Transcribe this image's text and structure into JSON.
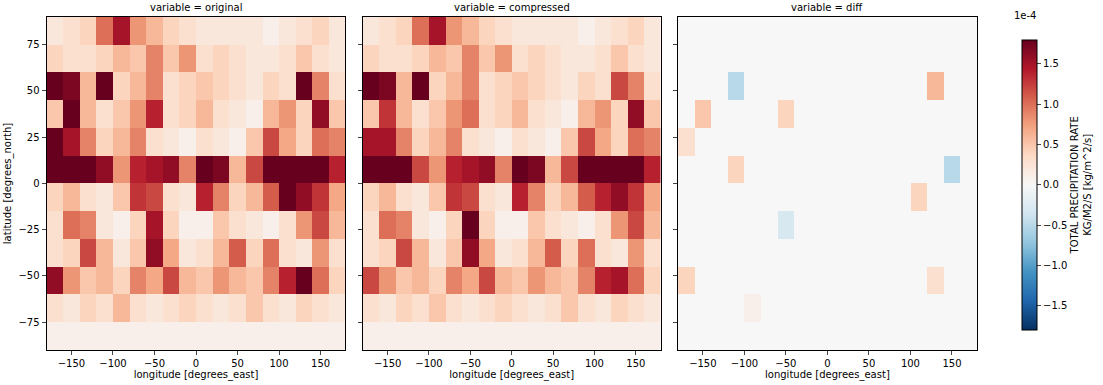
{
  "chart_data": {
    "type": "heatmap",
    "x": [
      -170,
      -150,
      -130,
      -110,
      -90,
      -70,
      -50,
      -30,
      -10,
      10,
      30,
      50,
      70,
      90,
      110,
      130,
      150,
      170
    ],
    "y": [
      -82.5,
      -67.5,
      -52.5,
      -37.5,
      -22.5,
      -7.5,
      7.5,
      22.5,
      37.5,
      52.5,
      67.5,
      82.5
    ],
    "xlabel": "longitude [degrees_east]",
    "ylabel": "latitude [degrees_north]",
    "xlim": [
      -180,
      180
    ],
    "xticks": [
      {
        "value": -150,
        "label": "−150"
      },
      {
        "value": -100,
        "label": "−100"
      },
      {
        "value": -50,
        "label": "−50"
      },
      0,
      50,
      100,
      150
    ],
    "ylim": [
      -90,
      90
    ],
    "yticks": [
      {
        "value": -75,
        "label": "−75"
      },
      {
        "value": -50,
        "label": "−50"
      },
      {
        "value": -25,
        "label": "−25"
      },
      0,
      25,
      50,
      75
    ],
    "grid": false,
    "colorbar": {
      "title": [
        "TOTAL PRECIPITATION RATE",
        "KG/M2/S [kg/m^2/s]"
      ],
      "scale_label": "1e-4",
      "range": [
        -1.8,
        1.8
      ],
      "ticks": [
        1.5,
        {
          "value": 1,
          "label": "1.0"
        },
        0.5,
        {
          "value": 0,
          "label": "0.0"
        },
        {
          "value": -0.5,
          "label": "−0.5"
        },
        {
          "value": -1,
          "label": "−1.0"
        },
        {
          "value": -1.5,
          "label": "−1.5"
        }
      ]
    },
    "panels": [
      {
        "title": "variable = original",
        "z": [
          [
            0.1,
            0.1,
            0.1,
            0.1,
            0.1,
            0.1,
            0.1,
            0.1,
            0.1,
            0.1,
            0.1,
            0.1,
            0.1,
            0.1,
            0.1,
            0.1,
            0.1,
            0.1
          ],
          [
            0.3,
            0.2,
            0.4,
            0.3,
            0.6,
            0.3,
            0.2,
            0.3,
            0.4,
            0.3,
            0.2,
            0.3,
            0.5,
            0.3,
            0.2,
            0.4,
            0.3,
            0.2
          ],
          [
            1.6,
            0.8,
            0.5,
            0.6,
            0.4,
            0.9,
            0.7,
            1.2,
            0.6,
            0.5,
            0.8,
            0.6,
            0.5,
            0.9,
            1.4,
            1.8,
            1.0,
            0.4
          ],
          [
            0.3,
            0.4,
            1.2,
            0.6,
            0.2,
            0.5,
            1.6,
            0.7,
            0.2,
            0.3,
            0.6,
            1.1,
            0.4,
            1.0,
            0.3,
            0.2,
            0.8,
            0.3
          ],
          [
            0.3,
            1.0,
            0.9,
            0.2,
            0.1,
            0.4,
            1.5,
            0.4,
            0.1,
            0.1,
            0.5,
            0.3,
            0.2,
            0.1,
            0.3,
            0.8,
            1.2,
            0.6
          ],
          [
            0.4,
            0.6,
            0.3,
            0.2,
            0.5,
            1.3,
            1.2,
            0.3,
            0.2,
            1.4,
            0.9,
            0.4,
            0.6,
            1.1,
            1.8,
            1.6,
            1.3,
            0.7
          ],
          [
            2.0,
            2.2,
            1.9,
            1.6,
            0.8,
            1.4,
            1.5,
            1.6,
            0.9,
            1.8,
            1.7,
            0.6,
            1.2,
            2.0,
            1.9,
            2.1,
            1.8,
            1.4
          ],
          [
            1.8,
            1.5,
            0.9,
            0.4,
            0.6,
            0.9,
            0.3,
            0.2,
            0.1,
            0.3,
            0.2,
            0.1,
            0.5,
            1.2,
            0.7,
            0.4,
            1.0,
            0.9
          ],
          [
            0.5,
            1.8,
            0.6,
            0.3,
            0.5,
            0.8,
            1.4,
            0.3,
            0.4,
            0.6,
            0.3,
            0.2,
            0.1,
            0.6,
            0.8,
            0.4,
            1.6,
            0.5
          ],
          [
            2.0,
            1.7,
            0.6,
            1.9,
            0.4,
            0.6,
            0.9,
            0.3,
            0.4,
            0.5,
            0.4,
            0.3,
            0.2,
            0.4,
            0.3,
            1.8,
            0.9,
            0.3
          ],
          [
            0.4,
            0.3,
            0.3,
            0.4,
            0.6,
            0.5,
            0.9,
            0.5,
            0.8,
            0.3,
            0.4,
            0.3,
            0.2,
            0.2,
            0.3,
            0.5,
            0.3,
            0.2
          ],
          [
            0.2,
            0.3,
            0.4,
            1.0,
            1.5,
            0.8,
            0.6,
            0.4,
            0.3,
            0.2,
            0.2,
            0.2,
            0.2,
            0.1,
            0.2,
            0.3,
            0.4,
            0.2
          ]
        ]
      },
      {
        "title": "variable = compressed",
        "z": [
          [
            0.1,
            0.1,
            0.1,
            0.1,
            0.1,
            0.1,
            0.1,
            0.1,
            0.1,
            0.1,
            0.1,
            0.1,
            0.1,
            0.1,
            0.1,
            0.1,
            0.1,
            0.1
          ],
          [
            0.3,
            0.2,
            0.4,
            0.3,
            0.5,
            0.3,
            0.2,
            0.3,
            0.4,
            0.3,
            0.2,
            0.3,
            0.5,
            0.3,
            0.2,
            0.4,
            0.3,
            0.2
          ],
          [
            1.2,
            0.8,
            0.5,
            0.6,
            0.4,
            0.9,
            0.7,
            1.2,
            0.6,
            0.5,
            0.8,
            0.6,
            0.5,
            0.9,
            1.4,
            1.5,
            1.0,
            0.4
          ],
          [
            0.3,
            0.4,
            1.2,
            0.6,
            0.2,
            0.5,
            1.6,
            0.7,
            0.2,
            0.3,
            0.6,
            1.1,
            0.4,
            1.0,
            0.3,
            0.2,
            0.8,
            0.3
          ],
          [
            0.3,
            1.0,
            0.9,
            0.2,
            0.1,
            0.4,
            1.8,
            0.4,
            0.1,
            0.1,
            0.5,
            0.3,
            0.2,
            0.1,
            0.3,
            0.8,
            1.2,
            0.6
          ],
          [
            0.4,
            0.6,
            0.3,
            0.2,
            0.5,
            1.3,
            1.2,
            0.3,
            0.2,
            1.4,
            0.9,
            0.4,
            0.6,
            1.1,
            1.4,
            1.6,
            1.3,
            0.7
          ],
          [
            2.0,
            2.2,
            1.9,
            1.2,
            0.8,
            1.4,
            1.5,
            1.6,
            0.9,
            1.8,
            1.7,
            0.6,
            1.2,
            2.0,
            1.9,
            2.1,
            2.3,
            1.4
          ],
          [
            1.5,
            1.5,
            0.9,
            0.4,
            0.6,
            0.9,
            0.3,
            0.2,
            0.1,
            0.3,
            0.2,
            0.1,
            0.5,
            1.2,
            0.7,
            0.4,
            1.0,
            0.9
          ],
          [
            0.5,
            1.3,
            0.6,
            0.3,
            0.5,
            0.8,
            1.0,
            0.3,
            0.4,
            0.6,
            0.3,
            0.2,
            0.1,
            0.6,
            0.8,
            0.4,
            1.6,
            0.5
          ],
          [
            2.0,
            1.7,
            0.6,
            2.4,
            0.4,
            0.6,
            0.9,
            0.3,
            0.4,
            0.5,
            0.4,
            0.3,
            0.2,
            0.4,
            0.3,
            1.2,
            0.9,
            0.3
          ],
          [
            0.4,
            0.3,
            0.3,
            0.4,
            0.6,
            0.5,
            0.9,
            0.5,
            0.8,
            0.3,
            0.4,
            0.3,
            0.2,
            0.2,
            0.3,
            0.5,
            0.3,
            0.2
          ],
          [
            0.2,
            0.3,
            0.4,
            1.0,
            1.5,
            0.8,
            0.6,
            0.4,
            0.3,
            0.2,
            0.2,
            0.2,
            0.2,
            0.1,
            0.2,
            0.3,
            0.4,
            0.2
          ]
        ]
      },
      {
        "title": "variable = diff",
        "z": [
          [
            0,
            0,
            0,
            0,
            0,
            0,
            0,
            0,
            0,
            0,
            0,
            0,
            0,
            0,
            0,
            0,
            0,
            0
          ],
          [
            0,
            0,
            0,
            0,
            0.1,
            0,
            0,
            0,
            0,
            0,
            0,
            0,
            0,
            0,
            0,
            0,
            0,
            0
          ],
          [
            0.4,
            0,
            0,
            0,
            0,
            0,
            0,
            0,
            0,
            0,
            0,
            0,
            0,
            0,
            0,
            0.3,
            0,
            0
          ],
          [
            0,
            0,
            0,
            0,
            0,
            0,
            0,
            0,
            0,
            0,
            0,
            0,
            0,
            0,
            0,
            0,
            0,
            0
          ],
          [
            0,
            0,
            0,
            0,
            0,
            0,
            -0.3,
            0,
            0,
            0,
            0,
            0,
            0,
            0,
            0,
            0,
            0,
            0
          ],
          [
            0,
            0,
            0,
            0,
            0,
            0,
            0,
            0,
            0,
            0,
            0,
            0,
            0,
            0,
            0.4,
            0,
            0,
            0
          ],
          [
            0,
            0,
            0,
            0.4,
            0,
            0,
            0,
            0,
            0,
            0,
            0,
            0,
            0,
            0,
            0,
            0,
            -0.5,
            0
          ],
          [
            0.3,
            0,
            0,
            0,
            0,
            0,
            0,
            0,
            0,
            0,
            0,
            0,
            0,
            0,
            0,
            0,
            0,
            0
          ],
          [
            0,
            0.5,
            0,
            0,
            0,
            0,
            0.4,
            0,
            0,
            0,
            0,
            0,
            0,
            0,
            0,
            0,
            0,
            0
          ],
          [
            0,
            0,
            0,
            -0.5,
            0,
            0,
            0,
            0,
            0,
            0,
            0,
            0,
            0,
            0,
            0,
            0.6,
            0,
            0
          ],
          [
            0,
            0,
            0,
            0,
            0,
            0,
            0,
            0,
            0,
            0,
            0,
            0,
            0,
            0,
            0,
            0,
            0,
            0
          ],
          [
            0,
            0,
            0,
            0,
            0,
            0,
            0,
            0,
            0,
            0,
            0,
            0,
            0,
            0,
            0,
            0,
            0,
            0
          ]
        ]
      }
    ]
  }
}
